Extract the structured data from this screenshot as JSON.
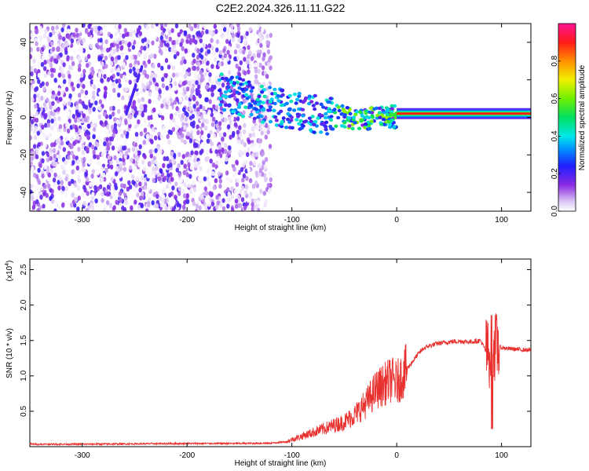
{
  "title": "C2E2.2024.326.11.11.G22",
  "chart_data": [
    {
      "type": "heatmap",
      "xlabel": "Height of straight line (km)",
      "ylabel": "Frequency (Hz)",
      "xlim": [
        -350,
        128
      ],
      "ylim": [
        -50,
        50
      ],
      "xticks": [
        -300,
        -200,
        -100,
        0,
        100
      ],
      "yticks": [
        -40,
        -20,
        0,
        20,
        40
      ],
      "colorbar": {
        "label": "Normalized spectral amplitude",
        "range": [
          0,
          1
        ],
        "ticks": [
          "0.0",
          "0.2",
          "0.4",
          "0.6",
          "0.8"
        ],
        "tick_values": [
          0.0,
          0.2,
          0.4,
          0.6,
          0.8
        ],
        "colormap": "rainbow (purple-blue-cyan-green-yellow-orange-red-magenta)"
      },
      "features": {
        "noise_region_x": [
          -350,
          -120
        ],
        "tone_x": [
          0,
          128
        ],
        "tone_frequency": 2,
        "tone_amplitude": 0.9,
        "ridge_points": [
          [
            -170,
            18
          ],
          [
            -150,
            14
          ],
          [
            -130,
            10
          ],
          [
            -110,
            8
          ],
          [
            -90,
            6
          ],
          [
            -70,
            4
          ],
          [
            -50,
            2
          ],
          [
            -30,
            1
          ],
          [
            -10,
            2
          ],
          [
            0,
            2
          ]
        ]
      }
    },
    {
      "type": "line",
      "xlabel": "Height of straight line (km)",
      "ylabel": "SNR (10 * v/v)",
      "y_multiplier": "(x10",
      "y_multiplier_exp": "4",
      "y_multiplier_close": ")",
      "xlim": [
        -350,
        128
      ],
      "ylim": [
        0,
        26500
      ],
      "xticks": [
        -300,
        -200,
        -100,
        0,
        100
      ],
      "yticks": [
        5000,
        10000,
        15000,
        20000,
        25000
      ],
      "ytick_labels": [
        "0.5",
        "1.0",
        "1.5",
        "2.0",
        "2.5"
      ],
      "color": "#e8302e",
      "series": [
        {
          "x": [
            -350,
            -300,
            -250,
            -200,
            -150,
            -120,
            -105,
            -100,
            -90,
            -80,
            -70,
            -60,
            -50,
            -40,
            -30,
            -25,
            -20,
            -15,
            -10,
            -5,
            0,
            5,
            10,
            15,
            20,
            25,
            30,
            40,
            50,
            60,
            70,
            80,
            85,
            88,
            90,
            92,
            94,
            96,
            100,
            110,
            120,
            128
          ],
          "y": [
            350,
            350,
            400,
            450,
            450,
            500,
            700,
            1000,
            1500,
            2000,
            2500,
            3000,
            3500,
            4500,
            6000,
            7000,
            8000,
            8500,
            9000,
            9500,
            9000,
            10000,
            11000,
            12000,
            13000,
            13800,
            14200,
            14600,
            14800,
            14900,
            14800,
            15000,
            13500,
            13000,
            13800,
            14200,
            14000,
            14200,
            14000,
            13800,
            13700,
            13600
          ]
        }
      ]
    }
  ]
}
